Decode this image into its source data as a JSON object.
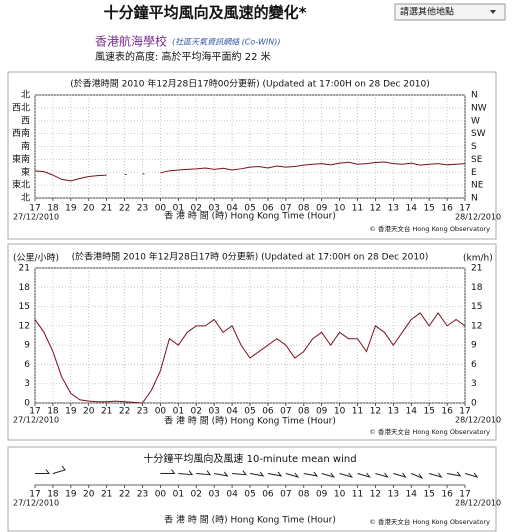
{
  "header": {
    "title": "十分鐘平均風向及風速的變化*",
    "select": "請選其他地點",
    "station": "香港航海學校",
    "network": "(社區天氣資訊網絡 (Co-WIN))",
    "height_note": "風速表的高度: 高於平均海平面約 22 米"
  },
  "chart_data": [
    {
      "type": "line",
      "title": "(於香港時間 2010 年12月28日17時00分更新) (Updated at 17:00H on 28 Dec 2010)",
      "xlabel": "香 港 時 間 (時) Hong Kong Time (Hour)",
      "credit": "© 香港天文台 Hong Kong Observatory",
      "start_date": "27/12/2010",
      "end_date": "28/12/2010",
      "xlim": [
        0,
        24
      ],
      "xticks": [
        {
          "value": 0,
          "label": "17"
        },
        {
          "value": 1,
          "label": "18"
        },
        {
          "value": 2,
          "label": "19"
        },
        {
          "value": 3,
          "label": "20"
        },
        {
          "value": 4,
          "label": "21"
        },
        {
          "value": 5,
          "label": "22"
        },
        {
          "value": 6,
          "label": "23"
        },
        {
          "value": 7,
          "label": "00"
        },
        {
          "value": 8,
          "label": "01"
        },
        {
          "value": 9,
          "label": "02"
        },
        {
          "value": 10,
          "label": "03"
        },
        {
          "value": 11,
          "label": "04"
        },
        {
          "value": 12,
          "label": "05"
        },
        {
          "value": 13,
          "label": "06"
        },
        {
          "value": 14,
          "label": "07"
        },
        {
          "value": 15,
          "label": "08"
        },
        {
          "value": 16,
          "label": "09"
        },
        {
          "value": 17,
          "label": "10"
        },
        {
          "value": 18,
          "label": "11"
        },
        {
          "value": 19,
          "label": "12"
        },
        {
          "value": 20,
          "label": "13"
        },
        {
          "value": 21,
          "label": "14"
        },
        {
          "value": 22,
          "label": "15"
        },
        {
          "value": 23,
          "label": "16"
        },
        {
          "value": 24,
          "label": "17"
        }
      ],
      "ylim": [
        0,
        360
      ],
      "yticks": [
        {
          "value": 0,
          "label": "北"
        },
        {
          "value": 45,
          "label": "東北"
        },
        {
          "value": 90,
          "label": "東"
        },
        {
          "value": 135,
          "label": "東南"
        },
        {
          "value": 180,
          "label": "南"
        },
        {
          "value": 225,
          "label": "西南"
        },
        {
          "value": 270,
          "label": "西"
        },
        {
          "value": 315,
          "label": "西北"
        },
        {
          "value": 360,
          "label": "北"
        }
      ],
      "y2lim": [
        0,
        360
      ],
      "y2ticks": [
        {
          "value": 0,
          "label": "N"
        },
        {
          "value": 45,
          "label": "NE"
        },
        {
          "value": 90,
          "label": "E"
        },
        {
          "value": 135,
          "label": "SE"
        },
        {
          "value": 180,
          "label": "S"
        },
        {
          "value": 225,
          "label": "SW"
        },
        {
          "value": 270,
          "label": "W"
        },
        {
          "value": 315,
          "label": "NW"
        },
        {
          "value": 360,
          "label": "N"
        }
      ],
      "grid": true,
      "color": "#7a1020",
      "x": [
        0,
        0.5,
        1,
        1.5,
        2,
        2.5,
        3,
        3.5,
        4,
        4.5,
        5,
        5.5,
        6,
        6.5,
        7,
        7.5,
        8,
        8.5,
        9,
        9.5,
        10,
        10.5,
        11,
        11.5,
        12,
        12.5,
        13,
        13.5,
        14,
        14.5,
        15,
        15.5,
        16,
        16.5,
        17,
        17.5,
        18,
        18.5,
        19,
        19.5,
        20,
        20.5,
        21,
        21.5,
        22,
        22.5,
        23,
        23.5,
        24
      ],
      "values": [
        95,
        92,
        80,
        65,
        60,
        68,
        75,
        78,
        80,
        null,
        82,
        null,
        84,
        null,
        88,
        95,
        98,
        100,
        102,
        105,
        100,
        104,
        98,
        102,
        108,
        110,
        105,
        112,
        108,
        110,
        115,
        118,
        120,
        116,
        122,
        125,
        118,
        120,
        124,
        126,
        120,
        118,
        122,
        115,
        118,
        120,
        116,
        118,
        120
      ]
    },
    {
      "type": "line",
      "title": "(於香港時間 2010 年12月28日17時 0分更新) (Updated at 17:00H on 28 Dec 2010)",
      "ylabel": "(公里/小時)",
      "y2label": "(km/h)",
      "xlabel": "香 港 時 間 (時) Hong Kong Time (Hour)",
      "credit": "© 香港天文台 Hong Kong Observatory",
      "start_date": "27/12/2010",
      "end_date": "28/12/2010",
      "xlim": [
        0,
        24
      ],
      "xticks": [
        {
          "value": 0,
          "label": "17"
        },
        {
          "value": 1,
          "label": "18"
        },
        {
          "value": 2,
          "label": "19"
        },
        {
          "value": 3,
          "label": "20"
        },
        {
          "value": 4,
          "label": "21"
        },
        {
          "value": 5,
          "label": "22"
        },
        {
          "value": 6,
          "label": "23"
        },
        {
          "value": 7,
          "label": "00"
        },
        {
          "value": 8,
          "label": "01"
        },
        {
          "value": 9,
          "label": "02"
        },
        {
          "value": 10,
          "label": "03"
        },
        {
          "value": 11,
          "label": "04"
        },
        {
          "value": 12,
          "label": "05"
        },
        {
          "value": 13,
          "label": "06"
        },
        {
          "value": 14,
          "label": "07"
        },
        {
          "value": 15,
          "label": "08"
        },
        {
          "value": 16,
          "label": "09"
        },
        {
          "value": 17,
          "label": "10"
        },
        {
          "value": 18,
          "label": "11"
        },
        {
          "value": 19,
          "label": "12"
        },
        {
          "value": 20,
          "label": "13"
        },
        {
          "value": 21,
          "label": "14"
        },
        {
          "value": 22,
          "label": "15"
        },
        {
          "value": 23,
          "label": "16"
        },
        {
          "value": 24,
          "label": "17"
        }
      ],
      "ylim": [
        0,
        21
      ],
      "yticks": [
        0,
        3,
        6,
        9,
        12,
        15,
        18,
        21
      ],
      "y2lim": [
        0,
        21
      ],
      "y2ticks": [
        0,
        3,
        6,
        9,
        12,
        15,
        18,
        21
      ],
      "grid": true,
      "color": "#7a1020",
      "x": [
        0,
        0.5,
        1,
        1.5,
        2,
        2.5,
        3,
        3.5,
        4,
        4.5,
        5,
        5.5,
        6,
        6.5,
        7,
        7.5,
        8,
        8.5,
        9,
        9.5,
        10,
        10.5,
        11,
        11.5,
        12,
        12.5,
        13,
        13.5,
        14,
        14.5,
        15,
        15.5,
        16,
        16.5,
        17,
        17.5,
        18,
        18.5,
        19,
        19.5,
        20,
        20.5,
        21,
        21.5,
        22,
        22.5,
        23,
        23.5,
        24
      ],
      "values": [
        13,
        11,
        8,
        4,
        1.5,
        0.5,
        0.3,
        0.2,
        0.2,
        0.3,
        0.2,
        0.1,
        0,
        2,
        5,
        10,
        9,
        11,
        12,
        12,
        13,
        11,
        12,
        9,
        7,
        8,
        9,
        10,
        9,
        7,
        8,
        10,
        11,
        9,
        11,
        10,
        10,
        8,
        12,
        11,
        9,
        11,
        13,
        14,
        12,
        14,
        12,
        13,
        12
      ]
    },
    {
      "type": "barb",
      "title": "十分鐘平均風向及風速     10-minute mean wind",
      "xlabel": "香 港 時 間 (時) Hong Kong Time (Hour)",
      "credit": "© 香港天文台 Hong Kong Observatory",
      "start_date": "27/12/2010",
      "end_date": "28/12/2010",
      "xlim": [
        0,
        24
      ],
      "xticks": [
        {
          "value": 0,
          "label": "17"
        },
        {
          "value": 1,
          "label": "18"
        },
        {
          "value": 2,
          "label": "19"
        },
        {
          "value": 3,
          "label": "20"
        },
        {
          "value": 4,
          "label": "21"
        },
        {
          "value": 5,
          "label": "22"
        },
        {
          "value": 6,
          "label": "23"
        },
        {
          "value": 7,
          "label": "00"
        },
        {
          "value": 8,
          "label": "01"
        },
        {
          "value": 9,
          "label": "02"
        },
        {
          "value": 10,
          "label": "03"
        },
        {
          "value": 11,
          "label": "04"
        },
        {
          "value": 12,
          "label": "05"
        },
        {
          "value": 13,
          "label": "06"
        },
        {
          "value": 14,
          "label": "07"
        },
        {
          "value": 15,
          "label": "08"
        },
        {
          "value": 16,
          "label": "09"
        },
        {
          "value": 17,
          "label": "10"
        },
        {
          "value": 18,
          "label": "11"
        },
        {
          "value": 19,
          "label": "12"
        },
        {
          "value": 20,
          "label": "13"
        },
        {
          "value": 21,
          "label": "14"
        },
        {
          "value": 22,
          "label": "15"
        },
        {
          "value": 23,
          "label": "16"
        },
        {
          "value": 24,
          "label": "17"
        }
      ],
      "color": "#222",
      "x": [
        0,
        1,
        2,
        3,
        4,
        5,
        6,
        7,
        8,
        9,
        10,
        11,
        12,
        13,
        14,
        15,
        16,
        17,
        18,
        19,
        20,
        21,
        22,
        23,
        24
      ],
      "values": [
        90,
        60,
        null,
        null,
        null,
        null,
        null,
        90,
        100,
        100,
        110,
        100,
        110,
        110,
        120,
        110,
        120,
        120,
        120,
        120,
        120,
        130,
        120,
        110,
        120
      ]
    }
  ]
}
